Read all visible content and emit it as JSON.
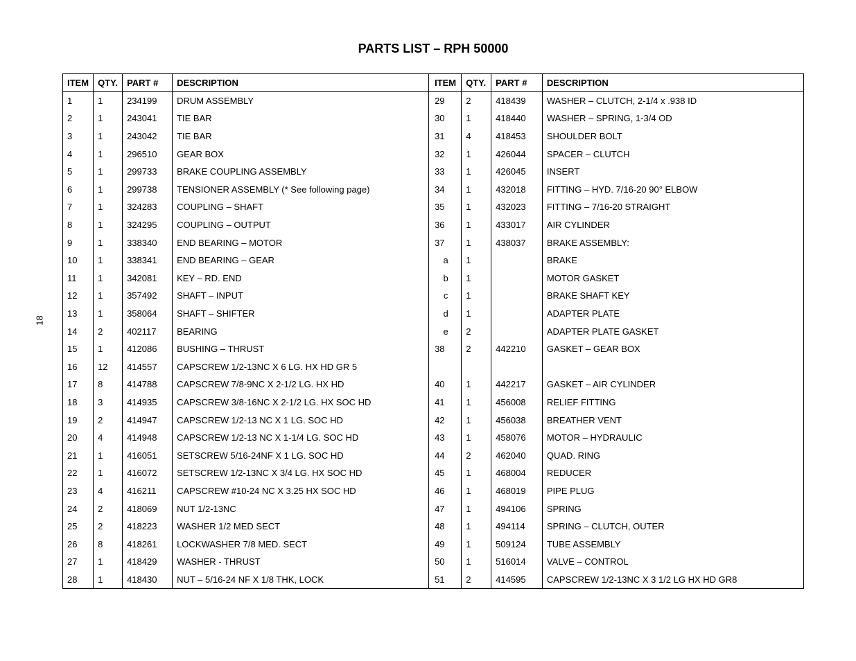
{
  "page_number": "18",
  "title": "PARTS LIST – RPH 50000",
  "headers": {
    "item": "ITEM",
    "qty": "QTY.",
    "part": "PART #",
    "desc": "DESCRIPTION"
  },
  "left_rows": [
    {
      "item": "1",
      "qty": "1",
      "part": "234199",
      "desc": "DRUM ASSEMBLY"
    },
    {
      "item": "2",
      "qty": "1",
      "part": "243041",
      "desc": "TIE BAR"
    },
    {
      "item": "3",
      "qty": "1",
      "part": "243042",
      "desc": "TIE BAR"
    },
    {
      "item": "4",
      "qty": "1",
      "part": "296510",
      "desc": "GEAR BOX"
    },
    {
      "item": "5",
      "qty": "1",
      "part": "299733",
      "desc": "BRAKE COUPLING ASSEMBLY"
    },
    {
      "item": "6",
      "qty": "1",
      "part": "299738",
      "desc": "TENSIONER ASSEMBLY (* See following page)"
    },
    {
      "item": "7",
      "qty": "1",
      "part": "324283",
      "desc": "COUPLING – SHAFT"
    },
    {
      "item": "8",
      "qty": "1",
      "part": "324295",
      "desc": "COUPLING – OUTPUT"
    },
    {
      "item": "9",
      "qty": "1",
      "part": "338340",
      "desc": "END BEARING – MOTOR"
    },
    {
      "item": "10",
      "qty": "1",
      "part": "338341",
      "desc": "END BEARING – GEAR"
    },
    {
      "item": "11",
      "qty": "1",
      "part": "342081",
      "desc": "KEY – RD. END"
    },
    {
      "item": "12",
      "qty": "1",
      "part": "357492",
      "desc": "SHAFT – INPUT"
    },
    {
      "item": "13",
      "qty": "1",
      "part": "358064",
      "desc": "SHAFT – SHIFTER"
    },
    {
      "item": "14",
      "qty": "2",
      "part": "402117",
      "desc": "BEARING"
    },
    {
      "item": "15",
      "qty": "1",
      "part": "412086",
      "desc": "BUSHING – THRUST"
    },
    {
      "item": "16",
      "qty": "12",
      "part": "414557",
      "desc": "CAPSCREW 1/2-13NC X 6 LG. HX HD GR 5"
    },
    {
      "item": "17",
      "qty": "8",
      "part": "414788",
      "desc": "CAPSCREW 7/8-9NC X 2-1/2 LG. HX HD"
    },
    {
      "item": "18",
      "qty": "3",
      "part": "414935",
      "desc": "CAPSCREW 3/8-16NC X 2-1/2 LG. HX SOC HD"
    },
    {
      "item": "19",
      "qty": "2",
      "part": "414947",
      "desc": "CAPSCREW 1/2-13 NC X 1 LG. SOC HD"
    },
    {
      "item": "20",
      "qty": "4",
      "part": "414948",
      "desc": "CAPSCREW 1/2-13 NC X 1-1/4 LG. SOC HD"
    },
    {
      "item": "21",
      "qty": "1",
      "part": "416051",
      "desc": "SETSCREW 5/16-24NF X 1 LG. SOC HD"
    },
    {
      "item": "22",
      "qty": "1",
      "part": "416072",
      "desc": "SETSCREW 1/2-13NC X 3/4 LG. HX SOC HD"
    },
    {
      "item": "23",
      "qty": "4",
      "part": "416211",
      "desc": "CAPSCREW #10-24 NC X 3.25 HX SOC HD"
    },
    {
      "item": "24",
      "qty": "2",
      "part": "418069",
      "desc": "NUT 1/2-13NC"
    },
    {
      "item": "25",
      "qty": "2",
      "part": "418223",
      "desc": "WASHER 1/2 MED SECT"
    },
    {
      "item": "26",
      "qty": "8",
      "part": "418261",
      "desc": "LOCKWASHER 7/8 MED. SECT"
    },
    {
      "item": "27",
      "qty": "1",
      "part": "418429",
      "desc": "WASHER - THRUST"
    },
    {
      "item": "28",
      "qty": "1",
      "part": "418430",
      "desc": "NUT – 5/16-24 NF X 1/8 THK, LOCK"
    }
  ],
  "right_rows": [
    {
      "item": "29",
      "qty": "2",
      "part": "418439",
      "desc": "WASHER – CLUTCH, 2-1/4 x .938 ID"
    },
    {
      "item": "30",
      "qty": "1",
      "part": "418440",
      "desc": "WASHER – SPRING, 1-3/4 OD"
    },
    {
      "item": "31",
      "qty": "4",
      "part": "418453",
      "desc": "SHOULDER BOLT"
    },
    {
      "item": "32",
      "qty": "1",
      "part": "426044",
      "desc": "SPACER – CLUTCH"
    },
    {
      "item": "33",
      "qty": "1",
      "part": "426045",
      "desc": "INSERT"
    },
    {
      "item": "34",
      "qty": "1",
      "part": "432018",
      "desc": "FITTING – HYD. 7/16-20 90° ELBOW"
    },
    {
      "item": "35",
      "qty": "1",
      "part": "432023",
      "desc": "FITTING – 7/16-20 STRAIGHT"
    },
    {
      "item": "36",
      "qty": "1",
      "part": "433017",
      "desc": "AIR CYLINDER"
    },
    {
      "item": "37",
      "qty": "1",
      "part": "438037",
      "desc": "BRAKE ASSEMBLY:"
    },
    {
      "item": "a",
      "qty": "1",
      "part": "",
      "desc": "BRAKE",
      "sub": true
    },
    {
      "item": "b",
      "qty": "1",
      "part": "",
      "desc": "MOTOR GASKET",
      "sub": true
    },
    {
      "item": "c",
      "qty": "1",
      "part": "",
      "desc": "BRAKE SHAFT KEY",
      "sub": true
    },
    {
      "item": "d",
      "qty": "1",
      "part": "",
      "desc": "ADAPTER PLATE",
      "sub": true
    },
    {
      "item": "e",
      "qty": "2",
      "part": "",
      "desc": "ADAPTER PLATE GASKET",
      "sub": true
    },
    {
      "item": "38",
      "qty": "2",
      "part": "442210",
      "desc": "GASKET – GEAR BOX"
    },
    {
      "item": "",
      "qty": "",
      "part": "",
      "desc": ""
    },
    {
      "item": "40",
      "qty": "1",
      "part": "442217",
      "desc": "GASKET – AIR CYLINDER"
    },
    {
      "item": "41",
      "qty": "1",
      "part": "456008",
      "desc": "RELIEF FITTING"
    },
    {
      "item": "42",
      "qty": "1",
      "part": "456038",
      "desc": "BREATHER VENT"
    },
    {
      "item": "43",
      "qty": "1",
      "part": "458076",
      "desc": "MOTOR – HYDRAULIC"
    },
    {
      "item": "44",
      "qty": "2",
      "part": "462040",
      "desc": "QUAD. RING"
    },
    {
      "item": "45",
      "qty": "1",
      "part": "468004",
      "desc": "REDUCER"
    },
    {
      "item": "46",
      "qty": "1",
      "part": "468019",
      "desc": "PIPE PLUG"
    },
    {
      "item": "47",
      "qty": "1",
      "part": "494106",
      "desc": "SPRING"
    },
    {
      "item": "48",
      "qty": "1",
      "part": "494114",
      "desc": "SPRING – CLUTCH, OUTER"
    },
    {
      "item": "49",
      "qty": "1",
      "part": "509124",
      "desc": "TUBE ASSEMBLY"
    },
    {
      "item": "50",
      "qty": "1",
      "part": "516014",
      "desc": "VALVE – CONTROL"
    },
    {
      "item": "51",
      "qty": "2",
      "part": "414595",
      "desc": "CAPSCREW 1/2-13NC X 3 1/2 LG HX HD GR8"
    }
  ]
}
